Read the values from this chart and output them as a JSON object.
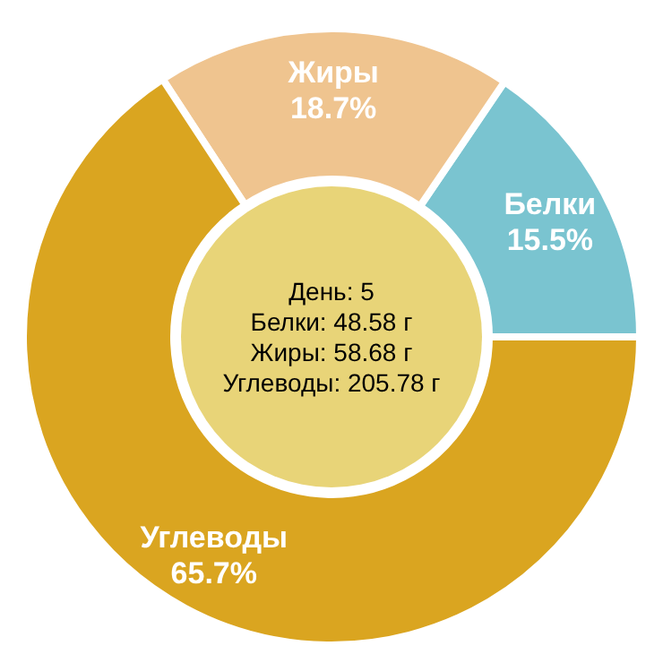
{
  "chart_data": {
    "type": "donut",
    "categories": [
      "Белки",
      "Жиры",
      "Углеводы"
    ],
    "values": [
      15.5,
      18.7,
      65.7
    ],
    "value_labels": [
      "15.5%",
      "18.7%",
      "65.7%"
    ],
    "colors": [
      "#7ac4d0",
      "#efc48f",
      "#daa520"
    ],
    "annotations": [
      "День: 5",
      "Белки: 48.58 г",
      "Жиры: 58.68 г",
      "Углеводы: 205.78 г"
    ]
  }
}
